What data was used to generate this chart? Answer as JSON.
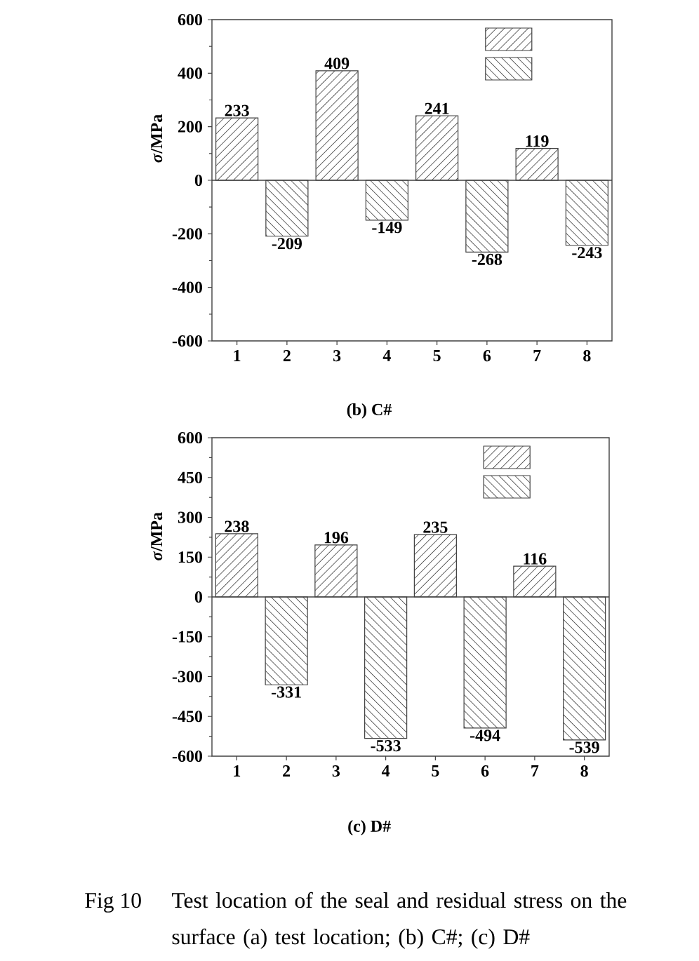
{
  "chart_data": [
    {
      "type": "bar",
      "title": "(b) C#",
      "ylabel": "*σ*/MPa",
      "categories": [
        "1",
        "2",
        "3",
        "4",
        "5",
        "6",
        "7",
        "8"
      ],
      "series": [
        {
          "color": "#555555",
          "values": [
            233,
            null,
            409,
            null,
            241,
            null,
            119,
            null
          ]
        },
        {
          "color": "#555555",
          "values": [
            null,
            -209,
            null,
            -149,
            null,
            -268,
            null,
            -243
          ]
        }
      ],
      "ylim": [
        -600,
        600
      ],
      "yticks": [
        -600,
        -400,
        -200,
        0,
        200,
        400,
        600
      ],
      "data_labels": true,
      "ref_lines": [
        {
          "axis": "y",
          "value": 0
        }
      ]
    },
    {
      "type": "bar",
      "title": "(c) D#",
      "ylabel": "*σ*/MPa",
      "categories": [
        "1",
        "2",
        "3",
        "4",
        "5",
        "6",
        "7",
        "8"
      ],
      "series": [
        {
          "color": "#555555",
          "values": [
            238,
            null,
            196,
            null,
            235,
            null,
            116,
            null
          ]
        },
        {
          "color": "#555555",
          "values": [
            null,
            -331,
            null,
            -533,
            null,
            -494,
            null,
            -539
          ]
        }
      ],
      "ylim": [
        -600,
        600
      ],
      "yticks": [
        -600,
        -450,
        -300,
        -150,
        0,
        150,
        300,
        450,
        600
      ],
      "data_labels": true,
      "ref_lines": [
        {
          "axis": "y",
          "value": 0
        }
      ],
      "annotations": [
        "Fig 10",
        "Test location of the seal and residual stress on the surface (a) test location; (b) C#; (c) D#"
      ]
    }
  ]
}
